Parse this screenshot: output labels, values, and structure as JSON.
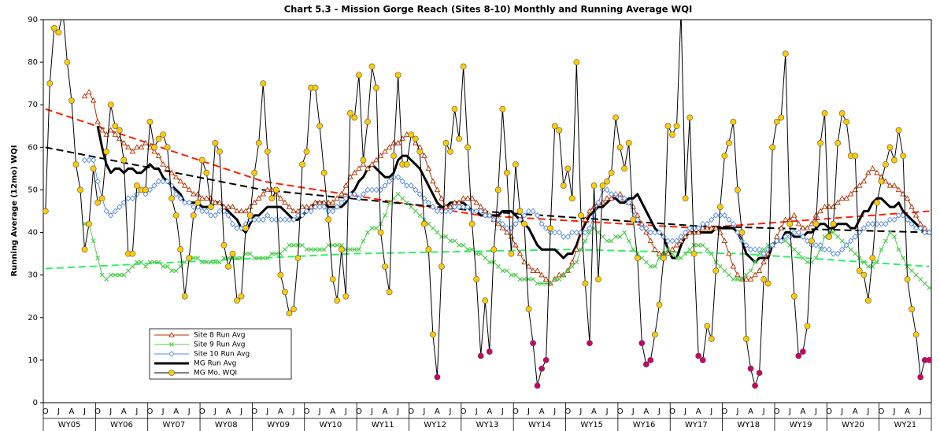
{
  "chart_data": {
    "type": "line",
    "title": "Chart 5.3 - Mission Gorge Reach (Sites 8-10) Monthly and Running Average WQI",
    "y_label": "Running Average (12mo) WQI",
    "ylim": [
      0,
      90
    ],
    "yticks": [
      0,
      10,
      20,
      30,
      40,
      50,
      60,
      70,
      80,
      90
    ],
    "categories": [
      "O",
      null,
      null,
      "J",
      null,
      null,
      "A",
      null,
      null,
      "J",
      null,
      null,
      "O",
      null,
      null,
      "J",
      null,
      null,
      "A",
      null,
      null,
      "J",
      null,
      null,
      "O",
      null,
      null,
      "J",
      null,
      null,
      "A",
      null,
      null,
      "J",
      null,
      null,
      "O",
      null,
      null,
      "J",
      null,
      null,
      "A",
      null,
      null,
      "J",
      null,
      null,
      "O",
      null,
      null,
      "J",
      null,
      null,
      "A",
      null,
      null,
      "J",
      null,
      null,
      "O",
      null,
      null,
      "J",
      null,
      null,
      "A",
      null,
      null,
      "J",
      null,
      null,
      "O",
      null,
      null,
      "J",
      null,
      null,
      "A",
      null,
      null,
      "J",
      null,
      null,
      "O",
      null,
      null,
      "J",
      null,
      null,
      "A",
      null,
      null,
      "J",
      null,
      null,
      "O",
      null,
      null,
      "J",
      null,
      null,
      "A",
      null,
      null,
      "J",
      null,
      null,
      "O",
      null,
      null,
      "J",
      null,
      null,
      "A",
      null,
      null,
      "J",
      null,
      null,
      "O",
      null,
      null,
      "J",
      null,
      null,
      "A",
      null,
      null,
      "J",
      null,
      null,
      "O",
      null,
      null,
      "J",
      null,
      null,
      "A",
      null,
      null,
      "J",
      null,
      null,
      "O",
      null,
      null,
      "J",
      null,
      null,
      "A",
      null,
      null,
      "J",
      null,
      null,
      "O",
      null,
      null,
      "J",
      null,
      null,
      "A",
      null,
      null,
      "J",
      null,
      null,
      "O",
      null,
      null,
      "J",
      null,
      null,
      "A",
      null,
      null,
      "J",
      null,
      null,
      "O",
      null,
      null,
      "J",
      null,
      null,
      "A",
      null,
      null,
      "J",
      null,
      null,
      "O",
      null,
      null,
      "J",
      null,
      null,
      "A",
      null,
      null,
      "J",
      null,
      null
    ],
    "groups": [
      "WY05",
      "WY06",
      "WY07",
      "WY08",
      "WY09",
      "WY10",
      "WY11",
      "WY12",
      "WY13",
      "WY14",
      "WY15",
      "WY16",
      "WY17",
      "WY18",
      "WY19",
      "WY20",
      "WY21"
    ],
    "low_below": 15,
    "low_color": "#cc0066",
    "series": [
      {
        "name": "Site 8 Run Avg",
        "color": "#b03000",
        "marker": "triangle",
        "line_width": 1,
        "values": [
          null,
          null,
          null,
          null,
          null,
          null,
          null,
          null,
          null,
          72,
          73,
          71,
          66,
          64,
          63,
          64,
          63,
          62,
          61,
          60,
          59,
          60,
          60,
          61,
          60,
          59,
          58,
          56,
          55,
          54,
          53,
          52,
          51,
          50,
          49,
          49,
          48,
          48,
          48,
          47,
          47,
          46,
          46,
          46,
          45,
          45,
          45,
          46,
          47,
          48,
          49,
          50,
          50,
          49,
          48,
          47,
          46,
          45,
          45,
          46,
          46,
          46,
          47,
          47,
          47,
          47,
          47,
          48,
          49,
          51,
          53,
          54,
          55,
          56,
          55,
          56,
          57,
          58,
          59,
          60,
          61,
          61,
          62,
          63,
          63,
          61,
          60,
          58,
          55,
          52,
          50,
          48,
          46,
          46,
          47,
          47,
          48,
          48,
          48,
          47,
          46,
          45,
          44,
          43,
          42,
          41,
          40,
          39,
          37,
          35,
          33,
          32,
          31,
          31,
          30,
          29,
          28,
          29,
          30,
          30,
          31,
          33,
          36,
          40,
          43,
          45,
          46,
          47,
          47,
          48,
          48,
          49,
          49,
          48,
          47,
          46,
          44,
          42,
          40,
          38,
          36,
          35,
          35,
          35,
          36,
          37,
          38,
          39,
          40,
          40,
          40,
          41,
          41,
          41,
          41,
          40,
          38,
          35,
          32,
          30,
          29,
          29,
          29,
          30,
          31,
          33,
          35,
          37,
          39,
          41,
          43,
          43,
          44,
          42,
          41,
          41,
          42,
          44,
          45,
          46,
          46,
          46,
          47,
          48,
          48,
          49,
          50,
          51,
          52,
          54,
          55,
          54,
          53,
          52,
          51,
          51,
          50,
          49,
          48,
          46,
          44,
          42,
          41,
          40
        ]
      },
      {
        "name": "Site 9 Run Avg",
        "color": "#55cc55",
        "marker": "x",
        "line_width": 1,
        "values": [
          null,
          null,
          null,
          null,
          null,
          null,
          null,
          null,
          null,
          42,
          42,
          38,
          34,
          30,
          29,
          30,
          30,
          30,
          30,
          31,
          32,
          33,
          33,
          32,
          33,
          33,
          33,
          32,
          32,
          31,
          31,
          32,
          33,
          34,
          34,
          34,
          33,
          33,
          33,
          33,
          33,
          34,
          34,
          34,
          34,
          34,
          35,
          35,
          34,
          34,
          34,
          34,
          35,
          35,
          35,
          36,
          37,
          37,
          37,
          37,
          36,
          36,
          36,
          36,
          36,
          37,
          37,
          37,
          37,
          36,
          36,
          36,
          36,
          38,
          40,
          41,
          41,
          42,
          44,
          47,
          48,
          49,
          48,
          47,
          46,
          45,
          44,
          43,
          42,
          41,
          40,
          39,
          39,
          38,
          38,
          37,
          37,
          36,
          36,
          35,
          35,
          34,
          33,
          33,
          32,
          31,
          31,
          30,
          30,
          29,
          29,
          29,
          29,
          28,
          28,
          28,
          28,
          29,
          29,
          30,
          31,
          32,
          33,
          36,
          38,
          40,
          41,
          40,
          39,
          38,
          38,
          39,
          39,
          40,
          38,
          36,
          35,
          34,
          33,
          32,
          32,
          34,
          35,
          36,
          35,
          34,
          34,
          35,
          36,
          37,
          37,
          37,
          36,
          35,
          33,
          32,
          31,
          30,
          29,
          29,
          29,
          30,
          31,
          33,
          35,
          36,
          37,
          37,
          38,
          38,
          38,
          37,
          36,
          35,
          34,
          33,
          33,
          34,
          36,
          39,
          40,
          40,
          39,
          38,
          37,
          36,
          35,
          34,
          33,
          32,
          32,
          33,
          36,
          38,
          40,
          39,
          36,
          34,
          32,
          31,
          30,
          29,
          28,
          27
        ]
      },
      {
        "name": "Site 10 Run Avg",
        "color": "#5588e0",
        "marker": "diamond",
        "line_width": 1,
        "values": [
          null,
          null,
          null,
          null,
          null,
          null,
          null,
          null,
          null,
          57,
          57,
          57,
          52,
          48,
          45,
          44,
          45,
          46,
          47,
          48,
          48,
          49,
          50,
          49,
          50,
          51,
          52,
          52,
          52,
          51,
          49,
          48,
          47,
          47,
          46,
          46,
          45,
          45,
          44,
          44,
          45,
          45,
          44,
          42,
          41,
          41,
          42,
          43,
          43,
          43,
          43,
          44,
          43,
          43,
          43,
          43,
          43,
          43,
          44,
          44,
          45,
          45,
          46,
          46,
          46,
          45,
          45,
          46,
          47,
          48,
          49,
          49,
          48,
          49,
          50,
          50,
          50,
          50,
          51,
          52,
          53,
          53,
          52,
          51,
          51,
          50,
          49,
          48,
          47,
          46,
          45,
          45,
          45,
          45,
          46,
          46,
          46,
          46,
          45,
          45,
          45,
          44,
          44,
          43,
          43,
          42,
          41,
          41,
          42,
          43,
          44,
          45,
          45,
          44,
          42,
          41,
          40,
          40,
          40,
          39,
          39,
          40,
          40,
          40,
          40,
          41,
          44,
          47,
          50,
          50,
          49,
          49,
          48,
          48,
          47,
          45,
          43,
          41,
          41,
          40,
          40,
          40,
          39,
          38,
          38,
          38,
          39,
          40,
          41,
          41,
          41,
          42,
          42,
          43,
          44,
          44,
          44,
          43,
          42,
          40,
          38,
          37,
          36,
          36,
          36,
          35,
          36,
          37,
          38,
          38,
          39,
          39,
          40,
          40,
          39,
          38,
          37,
          37,
          37,
          36,
          36,
          35,
          35,
          36,
          37,
          38,
          39,
          40,
          41,
          42,
          42,
          42,
          42,
          42,
          43,
          43,
          44,
          44,
          43,
          42,
          41,
          41,
          40,
          40
        ]
      },
      {
        "name": "MG Run Avg",
        "color": "#000000",
        "marker": "none",
        "line_width": 3,
        "values": [
          null,
          null,
          null,
          null,
          null,
          null,
          null,
          null,
          null,
          null,
          null,
          null,
          65,
          60,
          56,
          54,
          55,
          55,
          54,
          55,
          55,
          54,
          54,
          55,
          56,
          55,
          55,
          53,
          52,
          51,
          50,
          49,
          47,
          47,
          47,
          47,
          46,
          46,
          46,
          47,
          47,
          46,
          45,
          44,
          43,
          41,
          40,
          42,
          44,
          44,
          45,
          46,
          46,
          46,
          46,
          45,
          44,
          43,
          43,
          44,
          45,
          46,
          47,
          47,
          47,
          46,
          46,
          46,
          46,
          47,
          49,
          50,
          52,
          53,
          55,
          56,
          55,
          54,
          53,
          53,
          54,
          57,
          58,
          58,
          57,
          56,
          55,
          53,
          51,
          49,
          47,
          46,
          46,
          47,
          47,
          47,
          47,
          46,
          45,
          45,
          44,
          44,
          44,
          44,
          44,
          45,
          45,
          45,
          44,
          43,
          42,
          41,
          39,
          37,
          36,
          36,
          36,
          36,
          35,
          34,
          35,
          35,
          37,
          40,
          42,
          44,
          45,
          46,
          46,
          47,
          48,
          48,
          47,
          47,
          48,
          48,
          49,
          47,
          45,
          43,
          41,
          40,
          39,
          36,
          34,
          34,
          37,
          39,
          40,
          40,
          40,
          40,
          40,
          40,
          41,
          41,
          41,
          41,
          41,
          40,
          38,
          35,
          34,
          33,
          34,
          34,
          34,
          37,
          38,
          38,
          40,
          40,
          39,
          39,
          39,
          40,
          40,
          41,
          42,
          42,
          41,
          41,
          42,
          42,
          42,
          41,
          41,
          43,
          45,
          45,
          47,
          48,
          48,
          47,
          46,
          46,
          47,
          45,
          44,
          43,
          42,
          41,
          40,
          40
        ]
      },
      {
        "name": "MG Mo. WQI",
        "color": "#000000",
        "marker": "circle",
        "marker_color": "#ffcc00",
        "line_width": 1,
        "values": [
          45,
          75,
          88,
          87,
          92,
          80,
          71,
          56,
          50,
          36,
          42,
          55,
          47,
          48,
          59,
          70,
          65,
          64,
          57,
          35,
          35,
          51,
          50,
          50,
          66,
          60,
          62,
          63,
          60,
          48,
          44,
          36,
          25,
          34,
          44,
          47,
          57,
          54,
          46,
          61,
          59,
          37,
          32,
          35,
          24,
          25,
          41,
          44,
          54,
          61,
          75,
          59,
          48,
          50,
          30,
          26,
          21,
          22,
          34,
          56,
          59,
          74,
          74,
          65,
          54,
          43,
          29,
          24,
          36,
          25,
          68,
          67,
          77,
          57,
          66,
          79,
          74,
          40,
          32,
          26,
          58,
          77,
          56,
          56,
          63,
          62,
          59,
          42,
          36,
          16,
          6,
          32,
          61,
          59,
          69,
          62,
          79,
          60,
          42,
          29,
          11,
          24,
          12,
          36,
          50,
          69,
          54,
          35,
          56,
          45,
          42,
          22,
          14,
          4,
          8,
          10,
          41,
          65,
          64,
          51,
          55,
          48,
          80,
          44,
          28,
          14,
          51,
          29,
          51,
          52,
          54,
          67,
          60,
          55,
          61,
          43,
          34,
          14,
          9,
          10,
          16,
          23,
          34,
          65,
          63,
          65,
          92,
          48,
          67,
          35,
          11,
          10,
          18,
          15,
          31,
          46,
          58,
          61,
          66,
          50,
          40,
          15,
          8,
          4,
          7,
          29,
          28,
          60,
          66,
          67,
          82,
          42,
          25,
          11,
          12,
          18,
          38,
          42,
          61,
          68,
          39,
          42,
          61,
          68,
          66,
          58,
          58,
          31,
          30,
          24,
          34,
          47,
          52,
          56,
          60,
          57,
          64,
          58,
          29,
          22,
          16,
          6,
          10,
          10
        ]
      }
    ],
    "trendlines": [
      {
        "color": "#ff2200",
        "x": [
          0,
          50,
          100,
          150,
          203
        ],
        "values": [
          69,
          52,
          44,
          41,
          45
        ]
      },
      {
        "color": "#000000",
        "x": [
          0,
          50,
          100,
          150,
          203
        ],
        "values": [
          60,
          50,
          45,
          41.5,
          40
        ]
      },
      {
        "color": "#33ee66",
        "x": [
          0,
          70,
          120,
          160,
          203
        ],
        "values": [
          31.5,
          35,
          36,
          35,
          32
        ]
      }
    ]
  }
}
